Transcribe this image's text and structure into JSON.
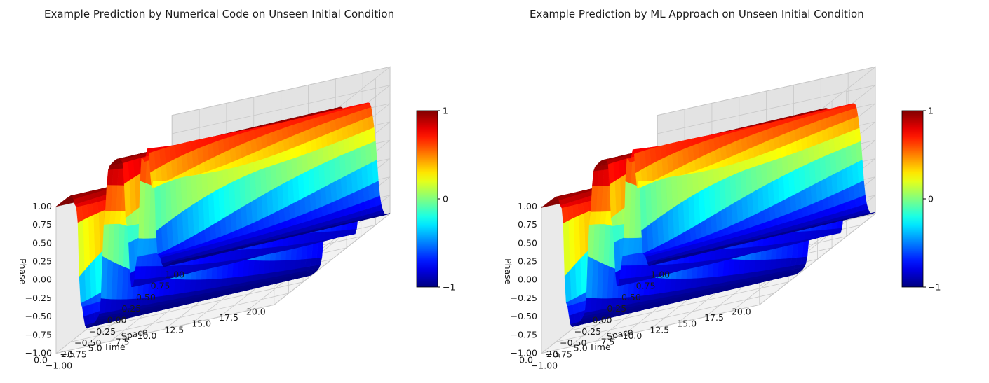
{
  "colors": {
    "colormap": "jet",
    "pane_left": "#eaeaea",
    "pane_right": "#e3e3e3",
    "pane_floor": "#f2f2f2",
    "grid": "#c8c8c8"
  },
  "chart_data": [
    {
      "type": "surface",
      "title": "Example Prediction by Numerical Code on Unseen Initial Condition",
      "xlabel": "Space",
      "ylabel": "Time",
      "zlabel": "Phase",
      "xlim": [
        -1,
        1
      ],
      "ylim": [
        0,
        20
      ],
      "zlim": [
        -1,
        1
      ],
      "x_ticks": [
        "−1.00",
        "−0.75",
        "−0.50",
        "−0.25",
        "0.00",
        "0.25",
        "0.50",
        "0.75",
        "1.00"
      ],
      "y_ticks": [
        "0.0",
        "2.5",
        "5.0",
        "7.5",
        "10.0",
        "12.5",
        "15.0",
        "17.5",
        "20.0"
      ],
      "z_ticks": [
        "−1.00",
        "−0.75",
        "−0.50",
        "−0.25",
        "0.00",
        "0.25",
        "0.50",
        "0.75",
        "1.00"
      ],
      "colorbar": {
        "ticks": [
          "−1",
          "0",
          "1"
        ],
        "range": [
          -1,
          1
        ]
      },
      "grid": true
    },
    {
      "type": "surface",
      "title": "Example Prediction by ML Approach on Unseen Initial Condition",
      "xlabel": "Space",
      "ylabel": "Time",
      "zlabel": "Phase",
      "xlim": [
        -1,
        1
      ],
      "ylim": [
        0,
        20
      ],
      "zlim": [
        -1,
        1
      ],
      "x_ticks": [
        "−1.00",
        "−0.75",
        "−0.50",
        "−0.25",
        "0.00",
        "0.25",
        "0.50",
        "0.75",
        "1.00"
      ],
      "y_ticks": [
        "0.0",
        "2.5",
        "5.0",
        "7.5",
        "10.0",
        "12.5",
        "15.0",
        "17.5",
        "20.0"
      ],
      "z_ticks": [
        "−1.00",
        "−0.75",
        "−0.50",
        "−0.25",
        "0.00",
        "0.25",
        "0.50",
        "0.75",
        "1.00"
      ],
      "colorbar": {
        "ticks": [
          "−1",
          "0",
          "1"
        ],
        "range": [
          -1,
          1
        ]
      },
      "grid": true
    }
  ]
}
